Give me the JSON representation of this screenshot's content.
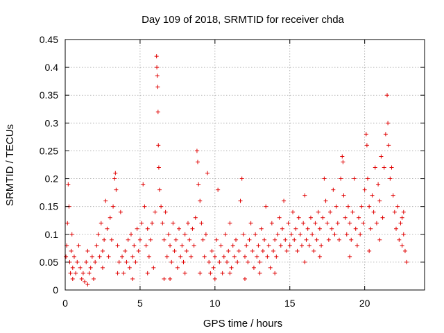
{
  "chart_data": {
    "type": "scatter",
    "title": "Day 109 of 2018, SRMTID for receiver chda",
    "xlabel": "GPS time / hours",
    "ylabel": "SRMTID / TECUs",
    "xlim": [
      0,
      24
    ],
    "ylim": [
      0,
      0.45
    ],
    "xticks": [
      0,
      5,
      10,
      15,
      20
    ],
    "xtick_labels": [
      "0",
      "5",
      "10",
      "15",
      "20"
    ],
    "yticks": [
      0,
      0.05,
      0.1,
      0.15,
      0.2,
      0.25,
      0.3,
      0.35,
      0.4,
      0.45
    ],
    "ytick_labels": [
      "0",
      "0.05",
      "0.1",
      "0.15",
      "0.2",
      "0.25",
      "0.3",
      "0.35",
      "0.4",
      "0.45"
    ],
    "grid": true,
    "marker": "+",
    "color": "#e00000",
    "series": [
      {
        "name": "SRMTID chda",
        "points": [
          [
            0.05,
            0.06
          ],
          [
            0.1,
            0.08
          ],
          [
            0.15,
            0.12
          ],
          [
            0.2,
            0.19
          ],
          [
            0.25,
            0.15
          ],
          [
            0.3,
            0.05
          ],
          [
            0.35,
            0.03
          ],
          [
            0.4,
            0.07
          ],
          [
            0.45,
            0.1
          ],
          [
            0.5,
            0.04
          ],
          [
            0.6,
            0.06
          ],
          [
            0.7,
            0.03
          ],
          [
            0.8,
            0.05
          ],
          [
            0.9,
            0.08
          ],
          [
            1.0,
            0.04
          ],
          [
            1.1,
            0.02
          ],
          [
            1.2,
            0.03
          ],
          [
            1.3,
            0.015
          ],
          [
            1.4,
            0.05
          ],
          [
            1.5,
            0.07
          ],
          [
            1.6,
            0.03
          ],
          [
            1.7,
            0.04
          ],
          [
            1.8,
            0.06
          ],
          [
            1.9,
            0.02
          ],
          [
            2.0,
            0.05
          ],
          [
            2.1,
            0.08
          ],
          [
            2.2,
            0.1
          ],
          [
            2.3,
            0.06
          ],
          [
            2.4,
            0.12
          ],
          [
            2.5,
            0.07
          ],
          [
            2.6,
            0.09
          ],
          [
            2.7,
            0.16
          ],
          [
            2.8,
            0.11
          ],
          [
            2.9,
            0.06
          ],
          [
            3.0,
            0.13
          ],
          [
            3.1,
            0.09
          ],
          [
            3.2,
            0.15
          ],
          [
            3.3,
            0.2
          ],
          [
            3.35,
            0.21
          ],
          [
            3.4,
            0.18
          ],
          [
            3.5,
            0.08
          ],
          [
            3.6,
            0.05
          ],
          [
            3.7,
            0.14
          ],
          [
            3.8,
            0.06
          ],
          [
            3.9,
            0.03
          ],
          [
            4.0,
            0.07
          ],
          [
            4.1,
            0.05
          ],
          [
            4.2,
            0.09
          ],
          [
            4.3,
            0.04
          ],
          [
            4.4,
            0.1
          ],
          [
            4.5,
            0.06
          ],
          [
            4.6,
            0.08
          ],
          [
            4.7,
            0.05
          ],
          [
            4.8,
            0.11
          ],
          [
            4.9,
            0.07
          ],
          [
            5.0,
            0.09
          ],
          [
            5.1,
            0.12
          ],
          [
            5.2,
            0.19
          ],
          [
            5.3,
            0.15
          ],
          [
            5.4,
            0.08
          ],
          [
            5.5,
            0.11
          ],
          [
            5.6,
            0.06
          ],
          [
            5.7,
            0.09
          ],
          [
            5.8,
            0.12
          ],
          [
            5.9,
            0.04
          ],
          [
            6.0,
            0.14
          ],
          [
            6.1,
            0.42
          ],
          [
            6.12,
            0.4
          ],
          [
            6.15,
            0.385
          ],
          [
            6.18,
            0.365
          ],
          [
            6.2,
            0.32
          ],
          [
            6.22,
            0.26
          ],
          [
            6.25,
            0.22
          ],
          [
            6.3,
            0.18
          ],
          [
            6.4,
            0.15
          ],
          [
            6.5,
            0.12
          ],
          [
            6.6,
            0.09
          ],
          [
            6.7,
            0.14
          ],
          [
            6.8,
            0.06
          ],
          [
            6.9,
            0.1
          ],
          [
            7.0,
            0.08
          ],
          [
            7.1,
            0.05
          ],
          [
            7.2,
            0.12
          ],
          [
            7.3,
            0.07
          ],
          [
            7.4,
            0.09
          ],
          [
            7.5,
            0.04
          ],
          [
            7.6,
            0.11
          ],
          [
            7.7,
            0.06
          ],
          [
            7.8,
            0.08
          ],
          [
            7.9,
            0.05
          ],
          [
            8.0,
            0.1
          ],
          [
            8.1,
            0.07
          ],
          [
            8.2,
            0.12
          ],
          [
            8.3,
            0.09
          ],
          [
            8.4,
            0.06
          ],
          [
            8.5,
            0.11
          ],
          [
            8.6,
            0.08
          ],
          [
            8.7,
            0.13
          ],
          [
            8.8,
            0.25
          ],
          [
            8.85,
            0.23
          ],
          [
            8.9,
            0.19
          ],
          [
            9.0,
            0.16
          ],
          [
            9.1,
            0.12
          ],
          [
            9.2,
            0.09
          ],
          [
            9.3,
            0.06
          ],
          [
            9.4,
            0.1
          ],
          [
            9.5,
            0.21
          ],
          [
            9.6,
            0.05
          ],
          [
            9.7,
            0.03
          ],
          [
            9.8,
            0.07
          ],
          [
            9.9,
            0.04
          ],
          [
            10.0,
            0.06
          ],
          [
            10.1,
            0.09
          ],
          [
            10.2,
            0.18
          ],
          [
            10.3,
            0.05
          ],
          [
            10.4,
            0.08
          ],
          [
            10.5,
            0.03
          ],
          [
            10.6,
            0.06
          ],
          [
            10.7,
            0.1
          ],
          [
            10.8,
            0.05
          ],
          [
            10.9,
            0.07
          ],
          [
            11.0,
            0.12
          ],
          [
            11.1,
            0.04
          ],
          [
            11.2,
            0.08
          ],
          [
            11.3,
            0.06
          ],
          [
            11.4,
            0.09
          ],
          [
            11.5,
            0.05
          ],
          [
            11.6,
            0.07
          ],
          [
            11.7,
            0.16
          ],
          [
            11.8,
            0.2
          ],
          [
            11.9,
            0.1
          ],
          [
            12.0,
            0.06
          ],
          [
            12.1,
            0.08
          ],
          [
            12.2,
            0.05
          ],
          [
            12.3,
            0.09
          ],
          [
            12.4,
            0.12
          ],
          [
            12.5,
            0.07
          ],
          [
            12.6,
            0.04
          ],
          [
            12.7,
            0.1
          ],
          [
            12.8,
            0.06
          ],
          [
            12.9,
            0.08
          ],
          [
            13.0,
            0.05
          ],
          [
            13.1,
            0.11
          ],
          [
            13.2,
            0.07
          ],
          [
            13.3,
            0.09
          ],
          [
            13.4,
            0.15
          ],
          [
            13.5,
            0.06
          ],
          [
            13.6,
            0.08
          ],
          [
            13.7,
            0.04
          ],
          [
            13.8,
            0.12
          ],
          [
            13.9,
            0.07
          ],
          [
            14.0,
            0.09
          ],
          [
            14.1,
            0.06
          ],
          [
            14.2,
            0.1
          ],
          [
            14.3,
            0.13
          ],
          [
            14.4,
            0.08
          ],
          [
            14.5,
            0.11
          ],
          [
            14.6,
            0.16
          ],
          [
            14.7,
            0.09
          ],
          [
            14.8,
            0.07
          ],
          [
            14.9,
            0.12
          ],
          [
            15.0,
            0.08
          ],
          [
            15.1,
            0.1
          ],
          [
            15.2,
            0.14
          ],
          [
            15.3,
            0.09
          ],
          [
            15.4,
            0.11
          ],
          [
            15.5,
            0.07
          ],
          [
            15.6,
            0.13
          ],
          [
            15.7,
            0.1
          ],
          [
            15.8,
            0.08
          ],
          [
            15.9,
            0.12
          ],
          [
            16.0,
            0.17
          ],
          [
            16.1,
            0.09
          ],
          [
            16.2,
            0.11
          ],
          [
            16.3,
            0.08
          ],
          [
            16.4,
            0.13
          ],
          [
            16.5,
            0.1
          ],
          [
            16.6,
            0.07
          ],
          [
            16.7,
            0.12
          ],
          [
            16.8,
            0.09
          ],
          [
            16.9,
            0.14
          ],
          [
            17.0,
            0.11
          ],
          [
            17.1,
            0.08
          ],
          [
            17.2,
            0.13
          ],
          [
            17.3,
            0.2
          ],
          [
            17.4,
            0.16
          ],
          [
            17.5,
            0.12
          ],
          [
            17.6,
            0.09
          ],
          [
            17.7,
            0.14
          ],
          [
            17.8,
            0.11
          ],
          [
            17.9,
            0.18
          ],
          [
            18.0,
            0.1
          ],
          [
            18.1,
            0.15
          ],
          [
            18.2,
            0.12
          ],
          [
            18.3,
            0.09
          ],
          [
            18.4,
            0.2
          ],
          [
            18.5,
            0.24
          ],
          [
            18.55,
            0.23
          ],
          [
            18.6,
            0.17
          ],
          [
            18.7,
            0.13
          ],
          [
            18.8,
            0.1
          ],
          [
            18.9,
            0.15
          ],
          [
            19.0,
            0.12
          ],
          [
            19.1,
            0.09
          ],
          [
            19.2,
            0.14
          ],
          [
            19.3,
            0.2
          ],
          [
            19.4,
            0.11
          ],
          [
            19.5,
            0.08
          ],
          [
            19.6,
            0.13
          ],
          [
            19.7,
            0.1
          ],
          [
            19.8,
            0.15
          ],
          [
            19.9,
            0.12
          ],
          [
            20.0,
            0.18
          ],
          [
            20.1,
            0.28
          ],
          [
            20.15,
            0.26
          ],
          [
            20.2,
            0.2
          ],
          [
            20.3,
            0.15
          ],
          [
            20.4,
            0.11
          ],
          [
            20.5,
            0.17
          ],
          [
            20.6,
            0.14
          ],
          [
            20.7,
            0.22
          ],
          [
            20.8,
            0.12
          ],
          [
            20.9,
            0.19
          ],
          [
            21.0,
            0.16
          ],
          [
            21.1,
            0.24
          ],
          [
            21.2,
            0.13
          ],
          [
            21.3,
            0.22
          ],
          [
            21.4,
            0.28
          ],
          [
            21.5,
            0.35
          ],
          [
            21.55,
            0.3
          ],
          [
            21.6,
            0.26
          ],
          [
            21.7,
            0.2
          ],
          [
            21.8,
            0.22
          ],
          [
            21.9,
            0.17
          ],
          [
            22.0,
            0.14
          ],
          [
            22.1,
            0.11
          ],
          [
            22.2,
            0.15
          ],
          [
            22.3,
            0.09
          ],
          [
            22.4,
            0.12
          ],
          [
            22.5,
            0.13
          ],
          [
            22.6,
            0.1
          ],
          [
            22.7,
            0.07
          ],
          [
            22.8,
            0.05
          ],
          [
            22.6,
            0.14
          ],
          [
            22.5,
            0.08
          ],
          [
            21.0,
            0.09
          ],
          [
            20.3,
            0.07
          ],
          [
            19.0,
            0.06
          ],
          [
            17.0,
            0.06
          ],
          [
            16.0,
            0.05
          ],
          [
            14.0,
            0.03
          ],
          [
            13.0,
            0.03
          ],
          [
            12.0,
            0.02
          ],
          [
            11.0,
            0.03
          ],
          [
            10.0,
            0.02
          ],
          [
            9.0,
            0.03
          ],
          [
            8.0,
            0.03
          ],
          [
            7.0,
            0.02
          ],
          [
            6.6,
            0.02
          ],
          [
            5.5,
            0.03
          ],
          [
            4.5,
            0.02
          ],
          [
            3.5,
            0.03
          ],
          [
            2.5,
            0.04
          ],
          [
            1.5,
            0.01
          ],
          [
            0.5,
            0.02
          ]
        ]
      }
    ]
  }
}
